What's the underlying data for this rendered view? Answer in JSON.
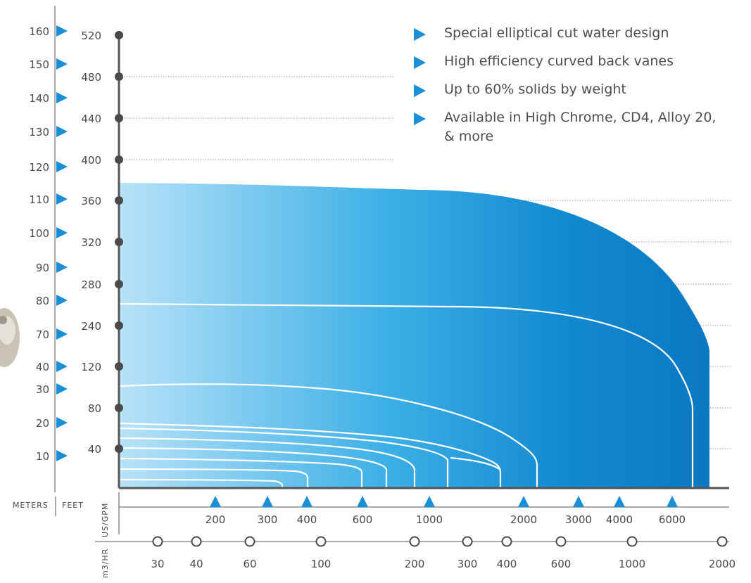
{
  "chart_data": {
    "type": "area",
    "title": "",
    "axes": {
      "meters": {
        "label": "METERS",
        "ticks": [
          "160",
          "150",
          "140",
          "130",
          "120",
          "110",
          "100",
          "90",
          "80",
          "70",
          "40",
          "30",
          "20",
          "10"
        ]
      },
      "feet": {
        "label": "FEET",
        "ticks": [
          "520",
          "480",
          "440",
          "400",
          "360",
          "320",
          "280",
          "240",
          "120",
          "80",
          "40"
        ]
      },
      "us_gpm": {
        "label": "US/GPM",
        "ticks": [
          "200",
          "300",
          "400",
          "600",
          "1000",
          "2000",
          "3000",
          "4000",
          "6000"
        ]
      },
      "m3_hr": {
        "label": "m3/HR",
        "ticks": [
          "30",
          "40",
          "60",
          "100",
          "200",
          "300",
          "400",
          "600",
          "1000",
          "2000"
        ]
      }
    },
    "series_note_free": true,
    "envelope": {
      "points_flow_gpm_head_ft": [
        [
          0,
          370
        ],
        [
          1000,
          362
        ],
        [
          3000,
          330
        ],
        [
          5000,
          260
        ],
        [
          7500,
          150
        ]
      ]
    },
    "curves": [
      {
        "head_ft": 260,
        "max_flow_gpm": 7000
      },
      {
        "head_ft": 100,
        "max_flow_gpm": 3200
      },
      {
        "head_ft": 60,
        "max_flow_gpm": 2100
      },
      {
        "head_ft": 55,
        "max_flow_gpm": 1500
      },
      {
        "head_ft": 48,
        "max_flow_gpm": 1100
      },
      {
        "head_ft": 40,
        "max_flow_gpm": 750
      },
      {
        "head_ft": 30,
        "max_flow_gpm": 600
      },
      {
        "head_ft": 22,
        "max_flow_gpm": 420
      },
      {
        "head_ft": 15,
        "max_flow_gpm": 350
      }
    ],
    "grid": "dotted-horizontal",
    "colors": {
      "fill_light": "#b8e2f8",
      "fill_mid": "#3db0e6",
      "fill_dark": "#0a78c2",
      "curve": "#ffffff",
      "marker": "#1a8fd6",
      "dot": "#4a4a4a"
    }
  },
  "bullets": [
    "Special elliptical cut water design",
    "High efficiency curved back vanes",
    "Up to 60% solids by weight",
    "Available in High Chrome, CD4, Alloy 20, & more"
  ]
}
